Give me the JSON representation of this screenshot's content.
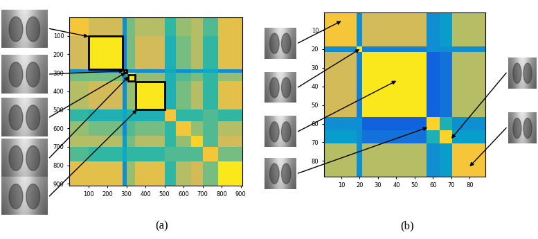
{
  "chart_data": [
    {
      "type": "heatmap",
      "label": "(a)",
      "edges": [
        0,
        100,
        280,
        300,
        345,
        500,
        560,
        640,
        700,
        780,
        910
      ],
      "cells": [
        [
          0.85,
          0.75,
          0.3,
          0.6,
          0.7,
          0.5,
          0.65,
          0.7,
          0.55,
          0.8
        ],
        [
          0.75,
          0.95,
          0.25,
          0.6,
          0.75,
          0.45,
          0.6,
          0.7,
          0.5,
          0.8
        ],
        [
          0.3,
          0.25,
          0.95,
          0.3,
          0.3,
          0.4,
          0.3,
          0.35,
          0.4,
          0.3
        ],
        [
          0.6,
          0.6,
          0.3,
          0.95,
          0.65,
          0.45,
          0.55,
          0.6,
          0.5,
          0.65
        ],
        [
          0.7,
          0.75,
          0.3,
          0.65,
          0.95,
          0.45,
          0.6,
          0.7,
          0.5,
          0.8
        ],
        [
          0.5,
          0.45,
          0.4,
          0.45,
          0.45,
          0.85,
          0.5,
          0.5,
          0.55,
          0.5
        ],
        [
          0.65,
          0.6,
          0.3,
          0.55,
          0.6,
          0.5,
          0.85,
          0.65,
          0.55,
          0.7
        ],
        [
          0.7,
          0.7,
          0.35,
          0.6,
          0.7,
          0.5,
          0.65,
          0.9,
          0.55,
          0.75
        ],
        [
          0.55,
          0.5,
          0.4,
          0.5,
          0.5,
          0.55,
          0.55,
          0.55,
          0.85,
          0.6
        ],
        [
          0.8,
          0.8,
          0.3,
          0.65,
          0.8,
          0.5,
          0.7,
          0.75,
          0.6,
          0.95
        ]
      ],
      "clim": [
        0,
        1
      ],
      "highlighted_blocks": [
        [
          100,
          280
        ],
        [
          285,
          300
        ],
        [
          310,
          345
        ],
        [
          350,
          500
        ]
      ],
      "xlim": [
        0,
        910
      ],
      "ylim": [
        910,
        0
      ],
      "xticks": [
        100,
        200,
        300,
        400,
        500,
        600,
        700,
        800,
        900
      ],
      "yticks": [
        100,
        200,
        300,
        400,
        500,
        600,
        700,
        800,
        900
      ]
    },
    {
      "type": "heatmap",
      "label": "(b)",
      "edges": [
        0.5,
        18.5,
        21.5,
        56.5,
        63.5,
        70.5,
        88.5
      ],
      "cells": [
        [
          0.85,
          0.3,
          0.75,
          0.3,
          0.35,
          0.7
        ],
        [
          0.3,
          0.95,
          0.25,
          0.3,
          0.3,
          0.3
        ],
        [
          0.75,
          0.25,
          0.95,
          0.15,
          0.2,
          0.7
        ],
        [
          0.3,
          0.3,
          0.15,
          0.9,
          0.45,
          0.3
        ],
        [
          0.35,
          0.3,
          0.2,
          0.45,
          0.9,
          0.35
        ],
        [
          0.7,
          0.3,
          0.7,
          0.3,
          0.35,
          0.85
        ]
      ],
      "clim": [
        0,
        1
      ],
      "highlighted_blocks": [],
      "xlim": [
        0.5,
        88.5
      ],
      "ylim": [
        88.5,
        0.5
      ],
      "xticks": [
        10,
        20,
        30,
        40,
        50,
        60,
        70,
        80
      ],
      "yticks": [
        10,
        20,
        30,
        40,
        50,
        60,
        70,
        80
      ]
    }
  ]
}
